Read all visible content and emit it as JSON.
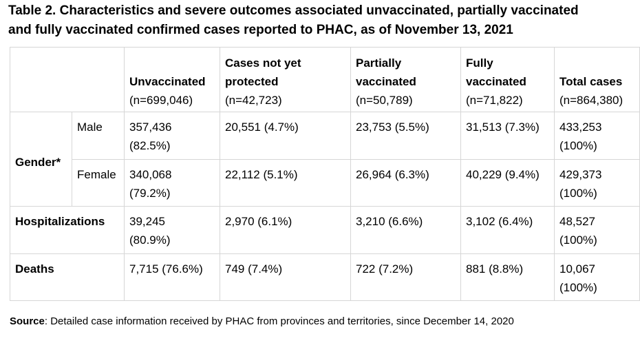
{
  "caption": {
    "line1": "Table 2. Characteristics and severe outcomes associated unvaccinated, partially vaccinated",
    "line2": "and fully vaccinated confirmed cases reported to PHAC, as of November 13, 2021"
  },
  "table": {
    "columns": [
      {
        "title": "Unvaccinated",
        "n": "(n=699,046)"
      },
      {
        "title_line1": "Cases not yet",
        "title_line2": "protected",
        "n": "(n=42,723)"
      },
      {
        "title_line1": "Partially",
        "title_line2": "vaccinated",
        "n": "(n=50,789)"
      },
      {
        "title_line1": "Fully",
        "title_line2": "vaccinated",
        "n": "(n=71,822)"
      },
      {
        "title": "Total cases",
        "n": "(n=864,380)"
      }
    ],
    "gender_label": "Gender*",
    "rows": {
      "male": {
        "label": "Male",
        "unvax_value": "357,436",
        "unvax_pct": "(82.5%)",
        "not_protected": "20,551 (4.7%)",
        "partial": "23,753 (5.5%)",
        "full": "31,513 (7.3%)",
        "total_value": "433,253",
        "total_pct": "(100%)"
      },
      "female": {
        "label": "Female",
        "unvax_value": "340,068",
        "unvax_pct": "(79.2%)",
        "not_protected": "22,112 (5.1%)",
        "partial": "26,964 (6.3%)",
        "full": "40,229 (9.4%)",
        "total_value": "429,373",
        "total_pct": "(100%)"
      },
      "hosp": {
        "label": "Hospitalizations",
        "unvax_value": "39,245",
        "unvax_pct": "(80.9%)",
        "not_protected": "2,970 (6.1%)",
        "partial": "3,210 (6.6%)",
        "full": "3,102 (6.4%)",
        "total_value": "48,527",
        "total_pct": "(100%)"
      },
      "deaths": {
        "label": "Deaths",
        "unvax": "7,715 (76.6%)",
        "not_protected": "749 (7.4%)",
        "partial": "722 (7.2%)",
        "full": "881 (8.8%)",
        "total_value": "10,067",
        "total_pct": "(100%)"
      }
    }
  },
  "source": {
    "label": "Source",
    "text": ": Detailed case information received by PHAC from provinces and territories, since December 14, 2020"
  }
}
